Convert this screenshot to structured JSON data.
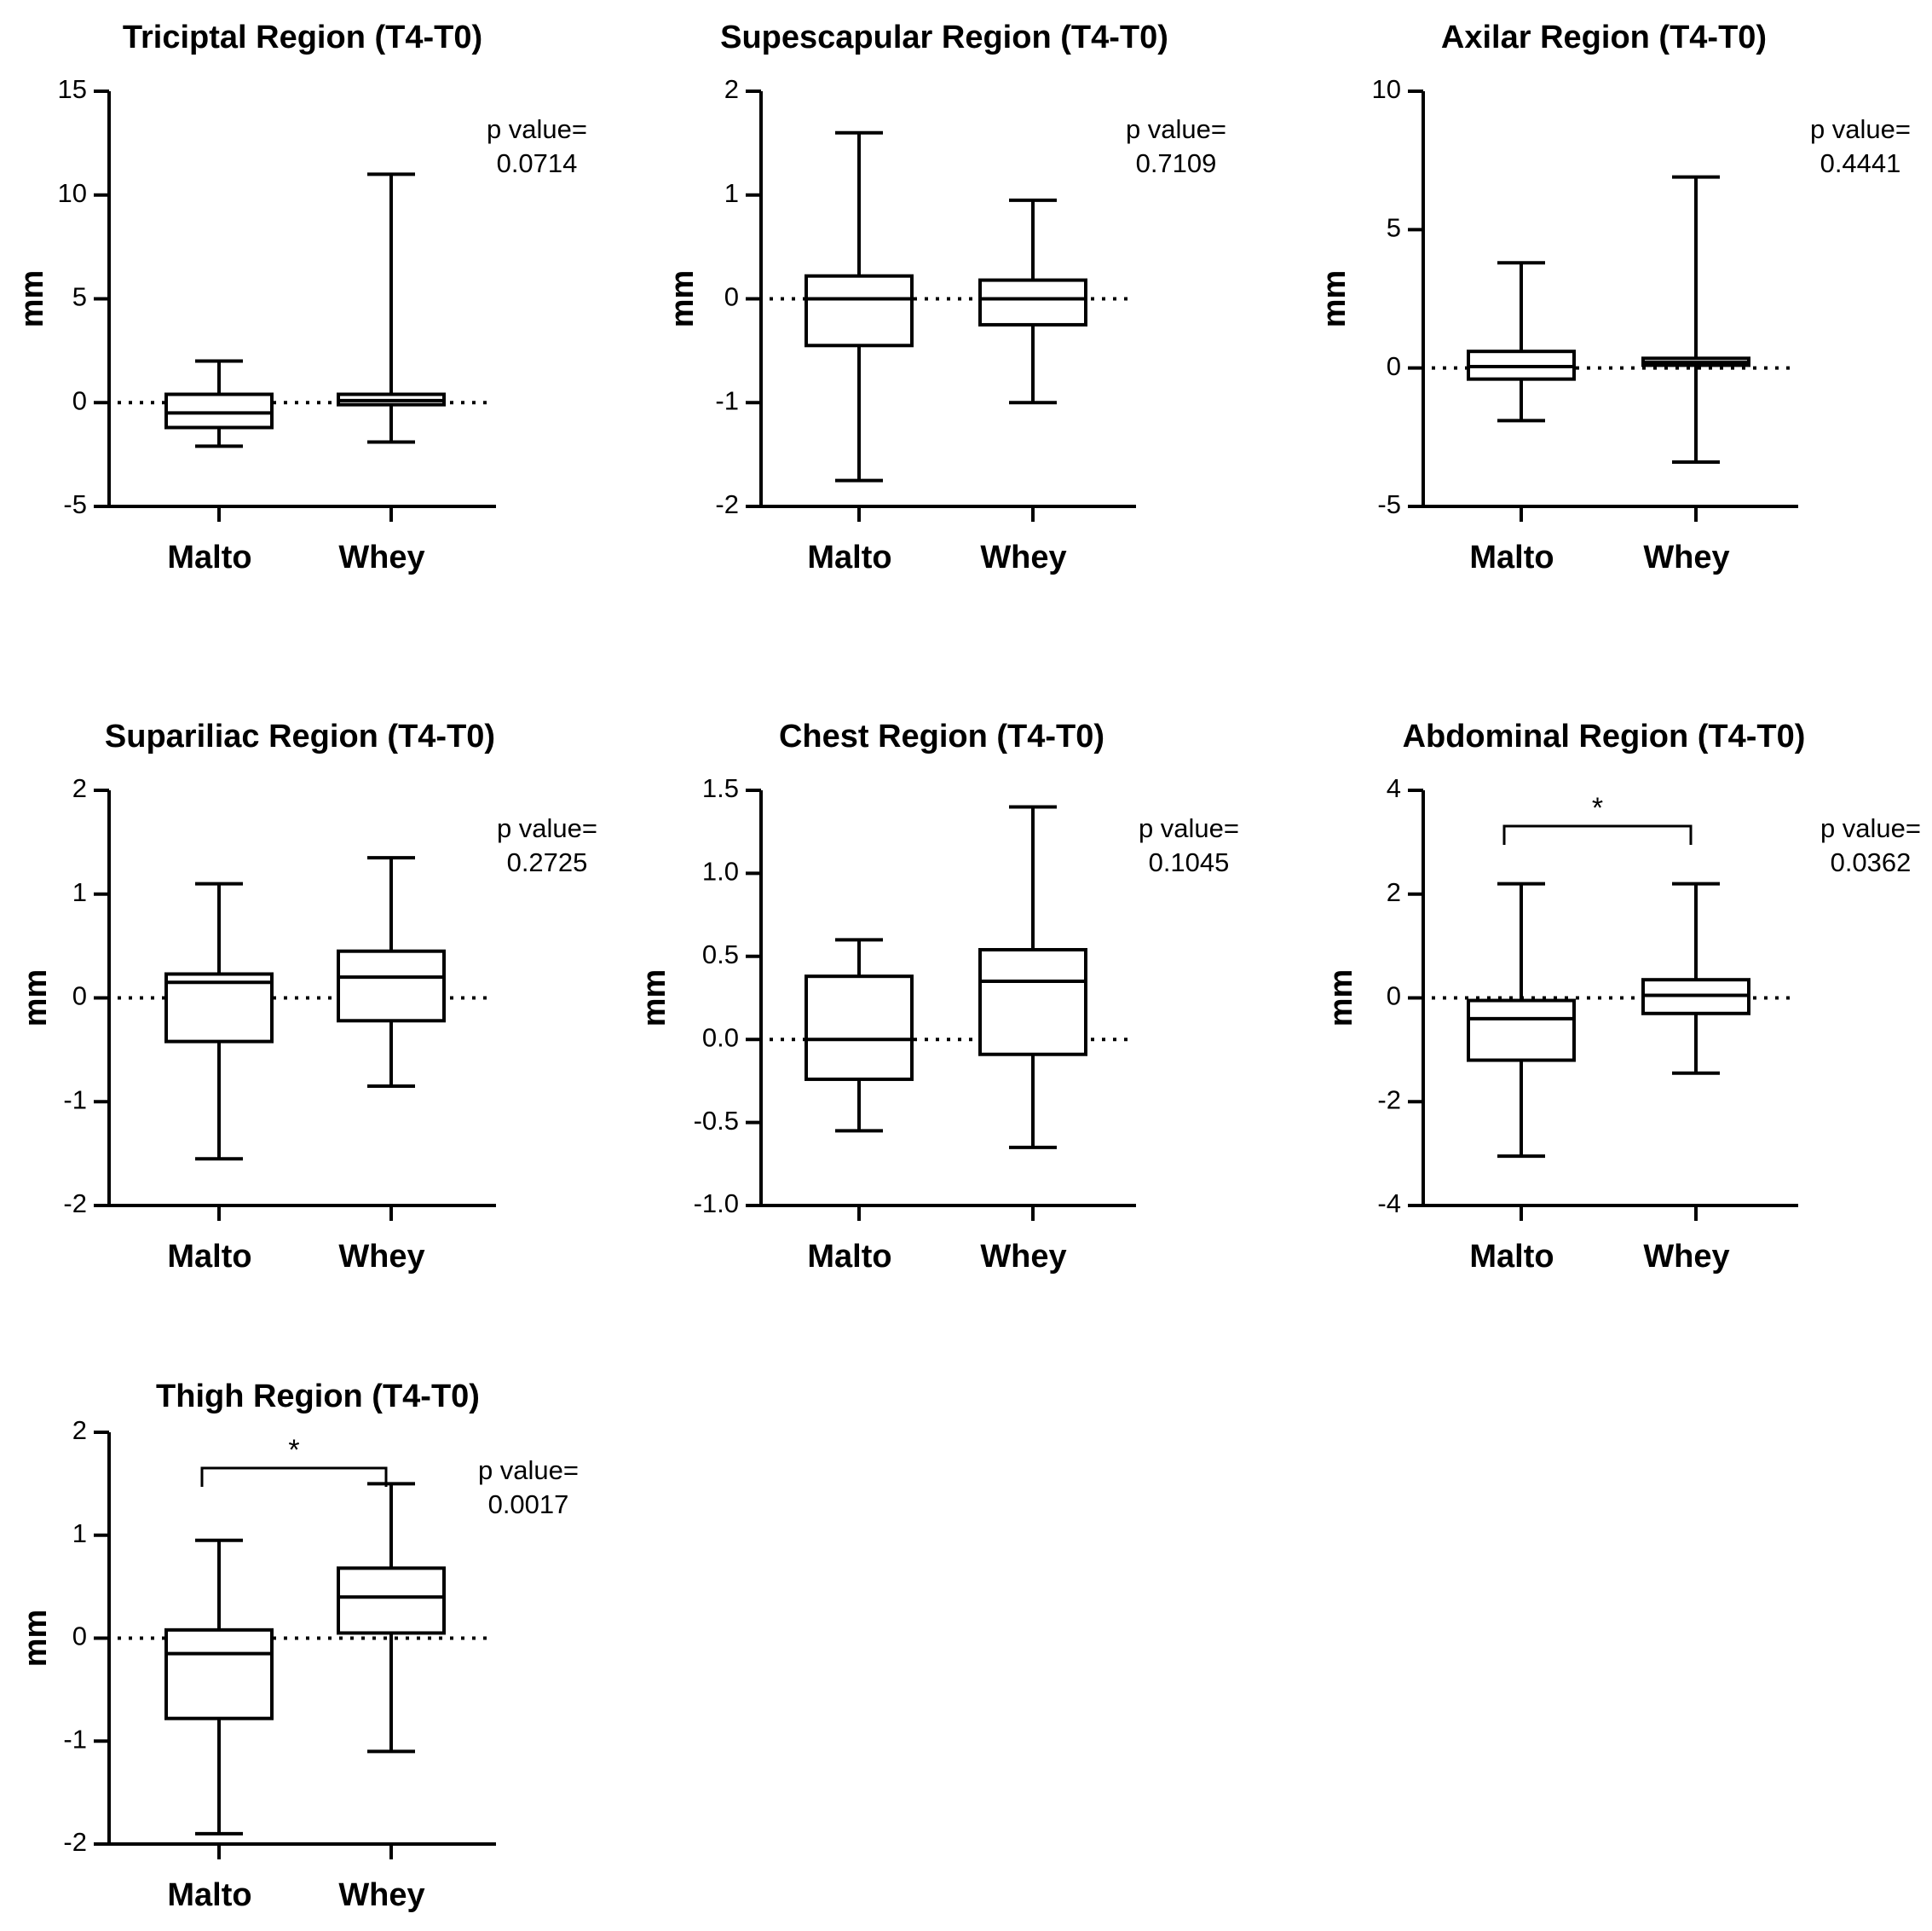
{
  "chart_data": [
    {
      "type": "box",
      "title": "Triciptal  Region (T4-T0)",
      "ylabel": "mm",
      "ylim": [
        -5,
        15
      ],
      "yticks": [
        "-5",
        "0",
        "5",
        "10",
        "15"
      ],
      "categories": [
        "Malto",
        "Whey"
      ],
      "boxes": [
        {
          "min": -2.1,
          "q1": -1.2,
          "median": -0.5,
          "q3": 0.4,
          "max": 2.0
        },
        {
          "min": -1.9,
          "q1": -0.1,
          "median": 0.1,
          "q3": 0.4,
          "max": 11.0
        }
      ],
      "reference_line": 0,
      "p_label": "p value=",
      "p_value": "0.0714",
      "significance": ""
    },
    {
      "type": "box",
      "title": "Supescapular Region (T4-T0)",
      "ylabel": "mm",
      "ylim": [
        -2,
        2
      ],
      "yticks": [
        "-2",
        "-1",
        "0",
        "1",
        "2"
      ],
      "categories": [
        "Malto",
        "Whey"
      ],
      "boxes": [
        {
          "min": -1.75,
          "q1": -0.45,
          "median": 0.0,
          "q3": 0.22,
          "max": 1.6
        },
        {
          "min": -1.0,
          "q1": -0.25,
          "median": 0.0,
          "q3": 0.18,
          "max": 0.95
        }
      ],
      "reference_line": 0,
      "p_label": "p value=",
      "p_value": "0.7109",
      "significance": ""
    },
    {
      "type": "box",
      "title": "Axilar Region (T4-T0)",
      "ylabel": "mm",
      "ylim": [
        -5,
        10
      ],
      "yticks": [
        "-5",
        "0",
        "5",
        "10"
      ],
      "categories": [
        "Malto",
        "Whey"
      ],
      "boxes": [
        {
          "min": -1.9,
          "q1": -0.4,
          "median": 0.05,
          "q3": 0.6,
          "max": 3.8
        },
        {
          "min": -3.4,
          "q1": 0.1,
          "median": 0.2,
          "q3": 0.35,
          "max": 6.9
        }
      ],
      "reference_line": 0,
      "p_label": "p value=",
      "p_value": "0.4441",
      "significance": ""
    },
    {
      "type": "box",
      "title": "Supariliac Region (T4-T0)",
      "ylabel": "mm",
      "ylim": [
        -2,
        2
      ],
      "yticks": [
        "-2",
        "-1",
        "0",
        "1",
        "2"
      ],
      "categories": [
        "Malto",
        "Whey"
      ],
      "boxes": [
        {
          "min": -1.55,
          "q1": -0.42,
          "median": 0.15,
          "q3": 0.23,
          "max": 1.1
        },
        {
          "min": -0.85,
          "q1": -0.22,
          "median": 0.2,
          "q3": 0.45,
          "max": 1.35
        }
      ],
      "reference_line": 0,
      "p_label": "p value=",
      "p_value": "0.2725",
      "significance": ""
    },
    {
      "type": "box",
      "title": "Chest Region (T4-T0)",
      "ylabel": "mm",
      "ylim": [
        -1.0,
        1.5
      ],
      "yticks": [
        "-1.0",
        "-0.5",
        "0.0",
        "0.5",
        "1.0",
        "1.5"
      ],
      "categories": [
        "Malto",
        "Whey"
      ],
      "boxes": [
        {
          "min": -0.55,
          "q1": -0.24,
          "median": 0.0,
          "q3": 0.38,
          "max": 0.6
        },
        {
          "min": -0.65,
          "q1": -0.09,
          "median": 0.35,
          "q3": 0.54,
          "max": 1.4
        }
      ],
      "reference_line": 0,
      "p_label": "p value=",
      "p_value": "0.1045",
      "significance": ""
    },
    {
      "type": "box",
      "title": "Abdominal Region (T4-T0)",
      "ylabel": "mm",
      "ylim": [
        -4,
        4
      ],
      "yticks": [
        "-4",
        "-2",
        "0",
        "2",
        "4"
      ],
      "categories": [
        "Malto",
        "Whey"
      ],
      "boxes": [
        {
          "min": -3.05,
          "q1": -1.2,
          "median": -0.4,
          "q3": -0.05,
          "max": 2.2
        },
        {
          "min": -1.45,
          "q1": -0.3,
          "median": 0.05,
          "q3": 0.35,
          "max": 2.2
        }
      ],
      "reference_line": 0,
      "p_label": "p value=",
      "p_value": "0.0362",
      "significance": "*"
    },
    {
      "type": "box",
      "title": "Thigh Region (T4-T0)",
      "ylabel": "mm",
      "ylim": [
        -2,
        2
      ],
      "yticks": [
        "-2",
        "-1",
        "0",
        "1",
        "2"
      ],
      "categories": [
        "Malto",
        "Whey"
      ],
      "boxes": [
        {
          "min": -1.9,
          "q1": -0.78,
          "median": -0.15,
          "q3": 0.08,
          "max": 0.95
        },
        {
          "min": -1.1,
          "q1": 0.05,
          "median": 0.4,
          "q3": 0.68,
          "max": 1.5
        }
      ],
      "reference_line": 0,
      "p_label": "p value=",
      "p_value": "0.0017",
      "significance": "*"
    }
  ]
}
